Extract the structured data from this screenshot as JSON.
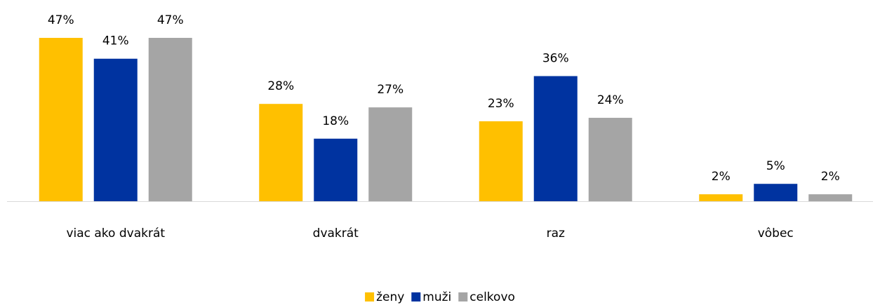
{
  "chart_data": {
    "type": "bar",
    "categories": [
      "viac ako dvakrát",
      "dvakrát",
      "raz",
      "vôbec"
    ],
    "series": [
      {
        "name": "ženy",
        "color": "#FFC000",
        "values": [
          47,
          28,
          23,
          2
        ],
        "value_labels": [
          "47%",
          "28%",
          "23%",
          "2%"
        ],
        "label_color": "#595959"
      },
      {
        "name": "muži",
        "color": "#0033A0",
        "values": [
          41,
          18,
          36,
          5
        ],
        "value_labels": [
          "41%",
          "18%",
          "36%",
          "5%"
        ],
        "label_color": "#000000"
      },
      {
        "name": "celkovo",
        "color": "#A5A5A5",
        "values": [
          47,
          27,
          24,
          2
        ],
        "value_labels": [
          "47%",
          "27%",
          "24%",
          "2%"
        ],
        "label_color": "#595959"
      }
    ],
    "legend": "bottom"
  }
}
